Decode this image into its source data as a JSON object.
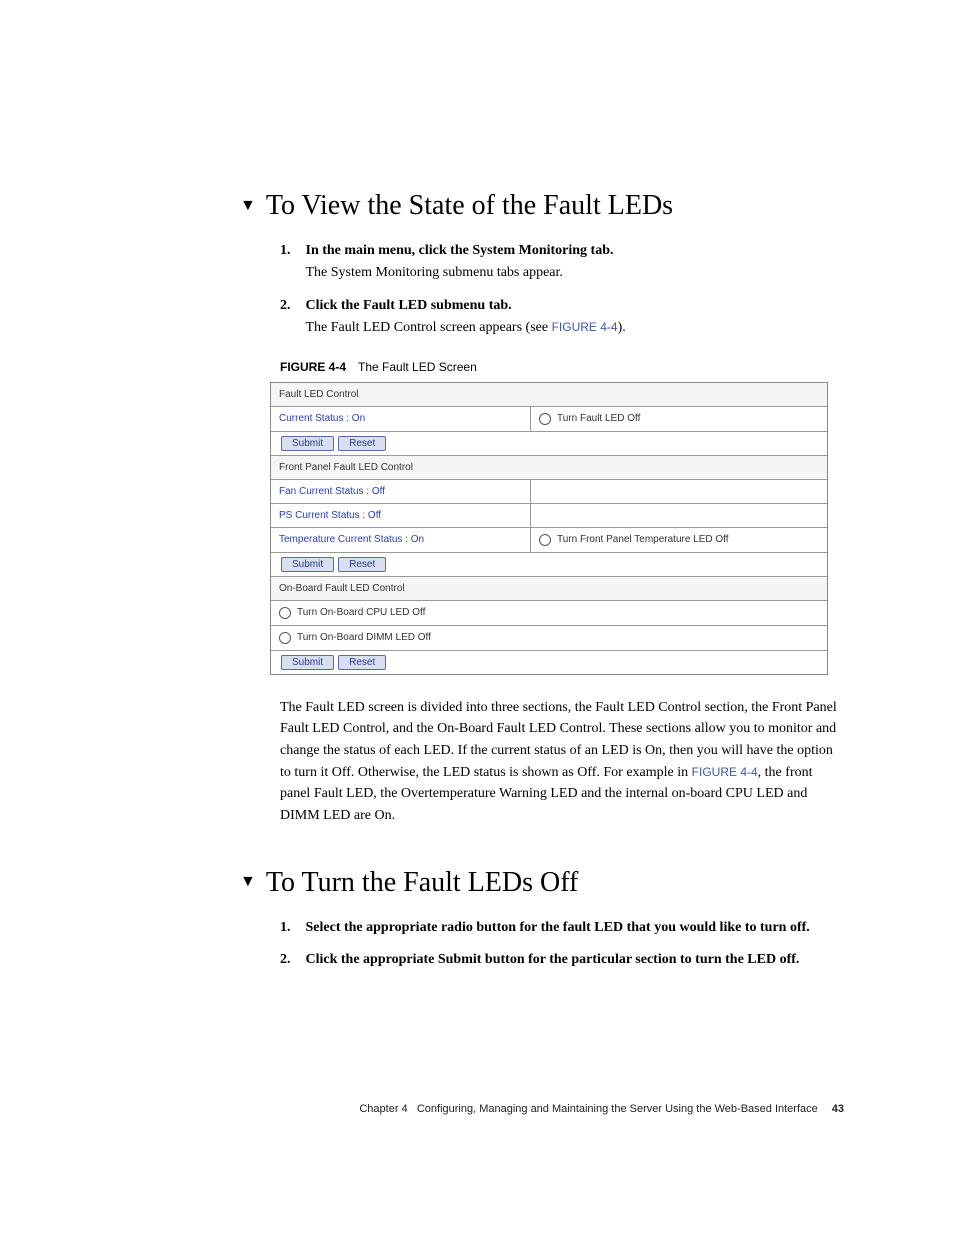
{
  "headings": {
    "view_state": "To View the State of the Fault LEDs",
    "turn_off": "To Turn the Fault LEDs Off"
  },
  "triangle": "▼",
  "view_steps": [
    {
      "num": "1.",
      "bold": "In the main menu, click the System Monitoring tab.",
      "plain": "The System Monitoring submenu tabs appear."
    },
    {
      "num": "2.",
      "bold": "Click the Fault LED submenu tab.",
      "plain_pre": "The Fault LED Control screen appears (see ",
      "figref": "FIGURE 4-4",
      "plain_post": ")."
    }
  ],
  "figure": {
    "label": "FIGURE 4-4",
    "title": "The Fault LED Screen"
  },
  "screenshot": {
    "section1_header": "Fault LED Control",
    "row_current_status": "Current Status : On",
    "row_turn_fault_off": "Turn Fault LED Off",
    "btn_submit": "Submit",
    "btn_reset": "Reset",
    "section2_header": "Front Panel Fault LED Control",
    "row_fan": "Fan Current Status : Off",
    "row_ps": "PS Current Status : Off",
    "row_temp": "Temperature Current Status : On",
    "row_turn_temp_off": "Turn Front Panel Temperature LED Off",
    "section3_header": "On-Board Fault LED Control",
    "row_cpu": "Turn On-Board CPU LED Off",
    "row_dimm": "Turn On-Board DIMM LED Off"
  },
  "description_pre": "The Fault LED screen is divided into three sections, the Fault LED Control section, the Front Panel Fault LED Control, and the On-Board Fault LED Control. These sections allow you to monitor and change the status of each LED. If the current status of an LED is On, then you will have the option to turn it Off. Otherwise, the LED status is shown as Off. For example in ",
  "description_figref": "FIGURE 4-4",
  "description_post": ", the front panel Fault LED, the Overtemperature Warning LED and the internal on-board CPU LED and DIMM LED are On.",
  "turnoff_steps": [
    {
      "num": "1.",
      "bold": "Select the appropriate radio button for the fault LED that you would like to turn off."
    },
    {
      "num": "2.",
      "bold": "Click the appropriate Submit button for the particular section to turn the LED off."
    }
  ],
  "footer": {
    "chapter": "Chapter 4",
    "title": "Configuring, Managing and Maintaining the Server Using the Web-Based Interface",
    "page": "43"
  }
}
